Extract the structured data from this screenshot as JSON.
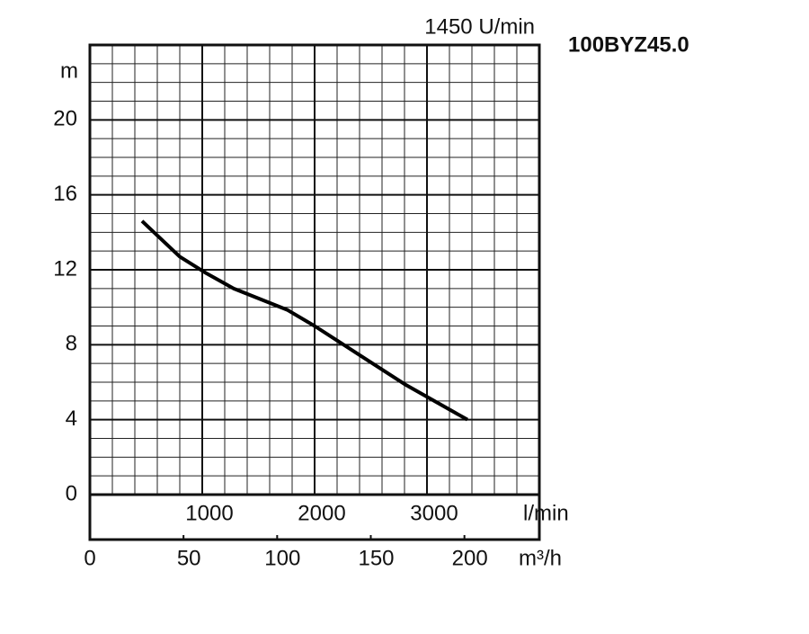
{
  "chart_data": {
    "type": "line",
    "title": "100BYZ45.0",
    "subtitle": "1450 U/min",
    "y_label": "m",
    "x_label": "l/min",
    "x2_label": "m³/h",
    "x": [
      464,
      800,
      1040,
      1280,
      1760,
      2000,
      2400,
      2800,
      3360
    ],
    "series": [
      {
        "color": "#000000",
        "values": [
          14.6,
          12.7,
          11.8,
          11.0,
          9.85,
          9.0,
          7.45,
          5.9,
          4.0
        ]
      }
    ],
    "xlim": [
      0,
      4000
    ],
    "xticks": [
      1000,
      2000,
      3000
    ],
    "ylim": [
      0,
      24
    ],
    "yticks": [
      0,
      4,
      8,
      12,
      16,
      20
    ],
    "x2lim": [
      0,
      240
    ],
    "x2ticks": [
      0,
      50,
      100,
      150,
      200
    ],
    "grid": true
  }
}
